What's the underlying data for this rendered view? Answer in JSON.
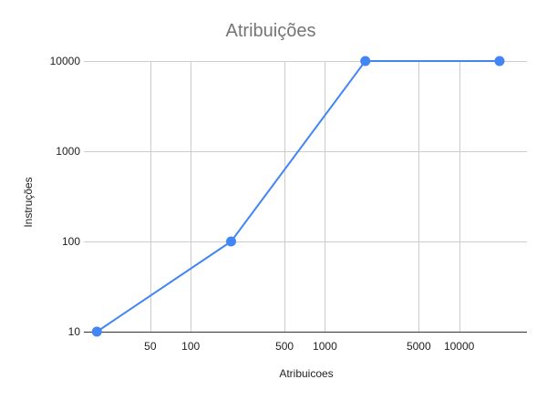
{
  "chart_data": {
    "type": "line",
    "title": "Atribuições",
    "xlabel": "Atribuicoes",
    "ylabel": "Instruções",
    "x_scale": "log",
    "y_scale": "log",
    "xlim": [
      16,
      32000
    ],
    "ylim": [
      10,
      10000
    ],
    "x_ticks": [
      {
        "value": 50,
        "label": "50"
      },
      {
        "value": 100,
        "label": "100"
      },
      {
        "value": 500,
        "label": "500"
      },
      {
        "value": 1000,
        "label": "1000"
      },
      {
        "value": 5000,
        "label": "5000"
      },
      {
        "value": 10000,
        "label": "10000"
      }
    ],
    "x_gridlines": [
      50,
      100,
      500,
      1000,
      5000,
      10000
    ],
    "y_ticks": [
      {
        "value": 10,
        "label": "10"
      },
      {
        "value": 100,
        "label": "100"
      },
      {
        "value": 1000,
        "label": "1000"
      },
      {
        "value": 10000,
        "label": "10000"
      }
    ],
    "grid": true,
    "legend": "none",
    "series": [
      {
        "color": "#4285f4",
        "points": [
          {
            "x": 20,
            "y": 10
          },
          {
            "x": 200,
            "y": 100
          },
          {
            "x": 2000,
            "y": 10000
          },
          {
            "x": 20000,
            "y": 10000
          }
        ]
      }
    ]
  }
}
